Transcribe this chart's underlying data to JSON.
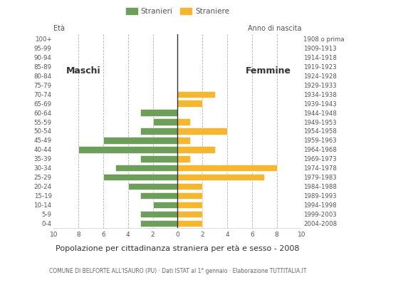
{
  "age_groups": [
    "0-4",
    "5-9",
    "10-14",
    "15-19",
    "20-24",
    "25-29",
    "30-34",
    "35-39",
    "40-44",
    "45-49",
    "50-54",
    "55-59",
    "60-64",
    "65-69",
    "70-74",
    "75-79",
    "80-84",
    "85-89",
    "90-94",
    "95-99",
    "100+"
  ],
  "birth_years": [
    "2004-2008",
    "1999-2003",
    "1994-1998",
    "1989-1993",
    "1984-1988",
    "1979-1983",
    "1974-1978",
    "1969-1973",
    "1964-1968",
    "1959-1963",
    "1954-1958",
    "1949-1953",
    "1944-1948",
    "1939-1943",
    "1934-1938",
    "1929-1933",
    "1924-1928",
    "1919-1923",
    "1914-1918",
    "1909-1913",
    "1908 o prima"
  ],
  "males": [
    3,
    3,
    2,
    3,
    4,
    6,
    5,
    3,
    8,
    6,
    3,
    2,
    3,
    0,
    0,
    0,
    0,
    0,
    0,
    0,
    0
  ],
  "females": [
    2,
    2,
    2,
    2,
    2,
    7,
    8,
    1,
    3,
    1,
    4,
    1,
    0,
    2,
    3,
    0,
    0,
    0,
    0,
    0,
    0
  ],
  "male_color": "#6d9e5a",
  "female_color": "#f5b730",
  "grid_color": "#b0b0b0",
  "background_color": "#ffffff",
  "title": "Popolazione per cittadinanza straniera per età e sesso - 2008",
  "subtitle": "COMUNE DI BELFORTE ALL'ISAURO (PU) · Dati ISTAT al 1° gennaio · Elaborazione TUTTITALIA.IT",
  "legend_males": "Stranieri",
  "legend_females": "Straniere",
  "xlim": 10,
  "eta_label": "Età",
  "anno_label": "Anno di nascita",
  "label_maschi": "Maschi",
  "label_femmine": "Femmine"
}
